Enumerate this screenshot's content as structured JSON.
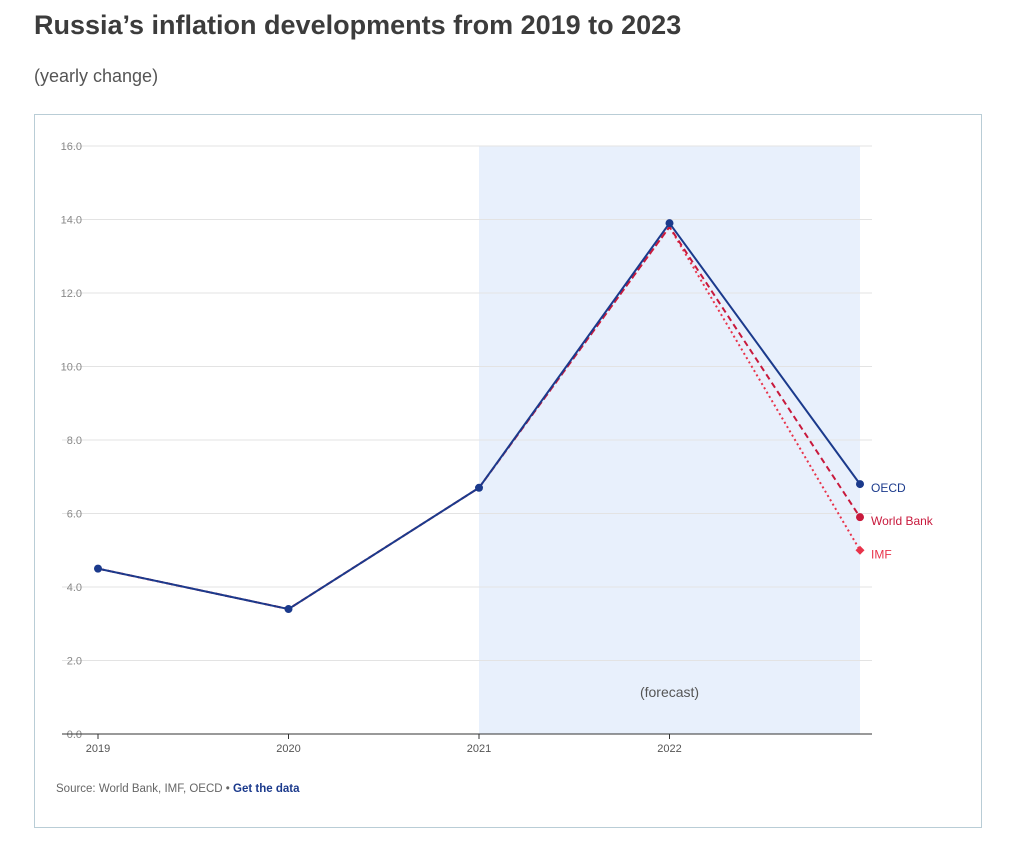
{
  "header": {
    "title": "Russia’s inflation developments from 2019 to 2023",
    "subtitle": "(yearly change)"
  },
  "footer": {
    "source_text": "Source: World Bank, IMF, OECD •",
    "link_text": "Get the data"
  },
  "chart_data": {
    "type": "line",
    "x": [
      2019,
      2020,
      2021,
      2022,
      2023
    ],
    "x_tick_labels": [
      "2019",
      "2020",
      "2021",
      "2022"
    ],
    "xlim": [
      2019,
      2023
    ],
    "ylim": [
      0,
      16
    ],
    "y_ticks": [
      0,
      2,
      4,
      6,
      8,
      10,
      12,
      14,
      16
    ],
    "y_tick_labels": [
      "0.0",
      "2.0",
      "4.0",
      "6.0",
      "8.0",
      "10.0",
      "12.0",
      "14.0",
      "16.0"
    ],
    "grid": true,
    "forecast_band": {
      "from": 2021,
      "to": 2023,
      "label": "(forecast)",
      "color": "#e8f0fc"
    },
    "series": [
      {
        "name": "OECD",
        "color": "#1b3a8c",
        "style": "solid",
        "marker": "circle",
        "values": [
          4.5,
          3.4,
          6.7,
          13.9,
          6.8
        ]
      },
      {
        "name": "World Bank",
        "color": "#c8193c",
        "style": "dashed",
        "marker": "circle",
        "values": [
          4.5,
          3.4,
          6.7,
          13.8,
          5.9
        ]
      },
      {
        "name": "IMF",
        "color": "#e8334a",
        "style": "dotted",
        "marker": "diamond",
        "values": [
          4.5,
          3.4,
          6.7,
          13.8,
          5.0
        ]
      }
    ]
  }
}
